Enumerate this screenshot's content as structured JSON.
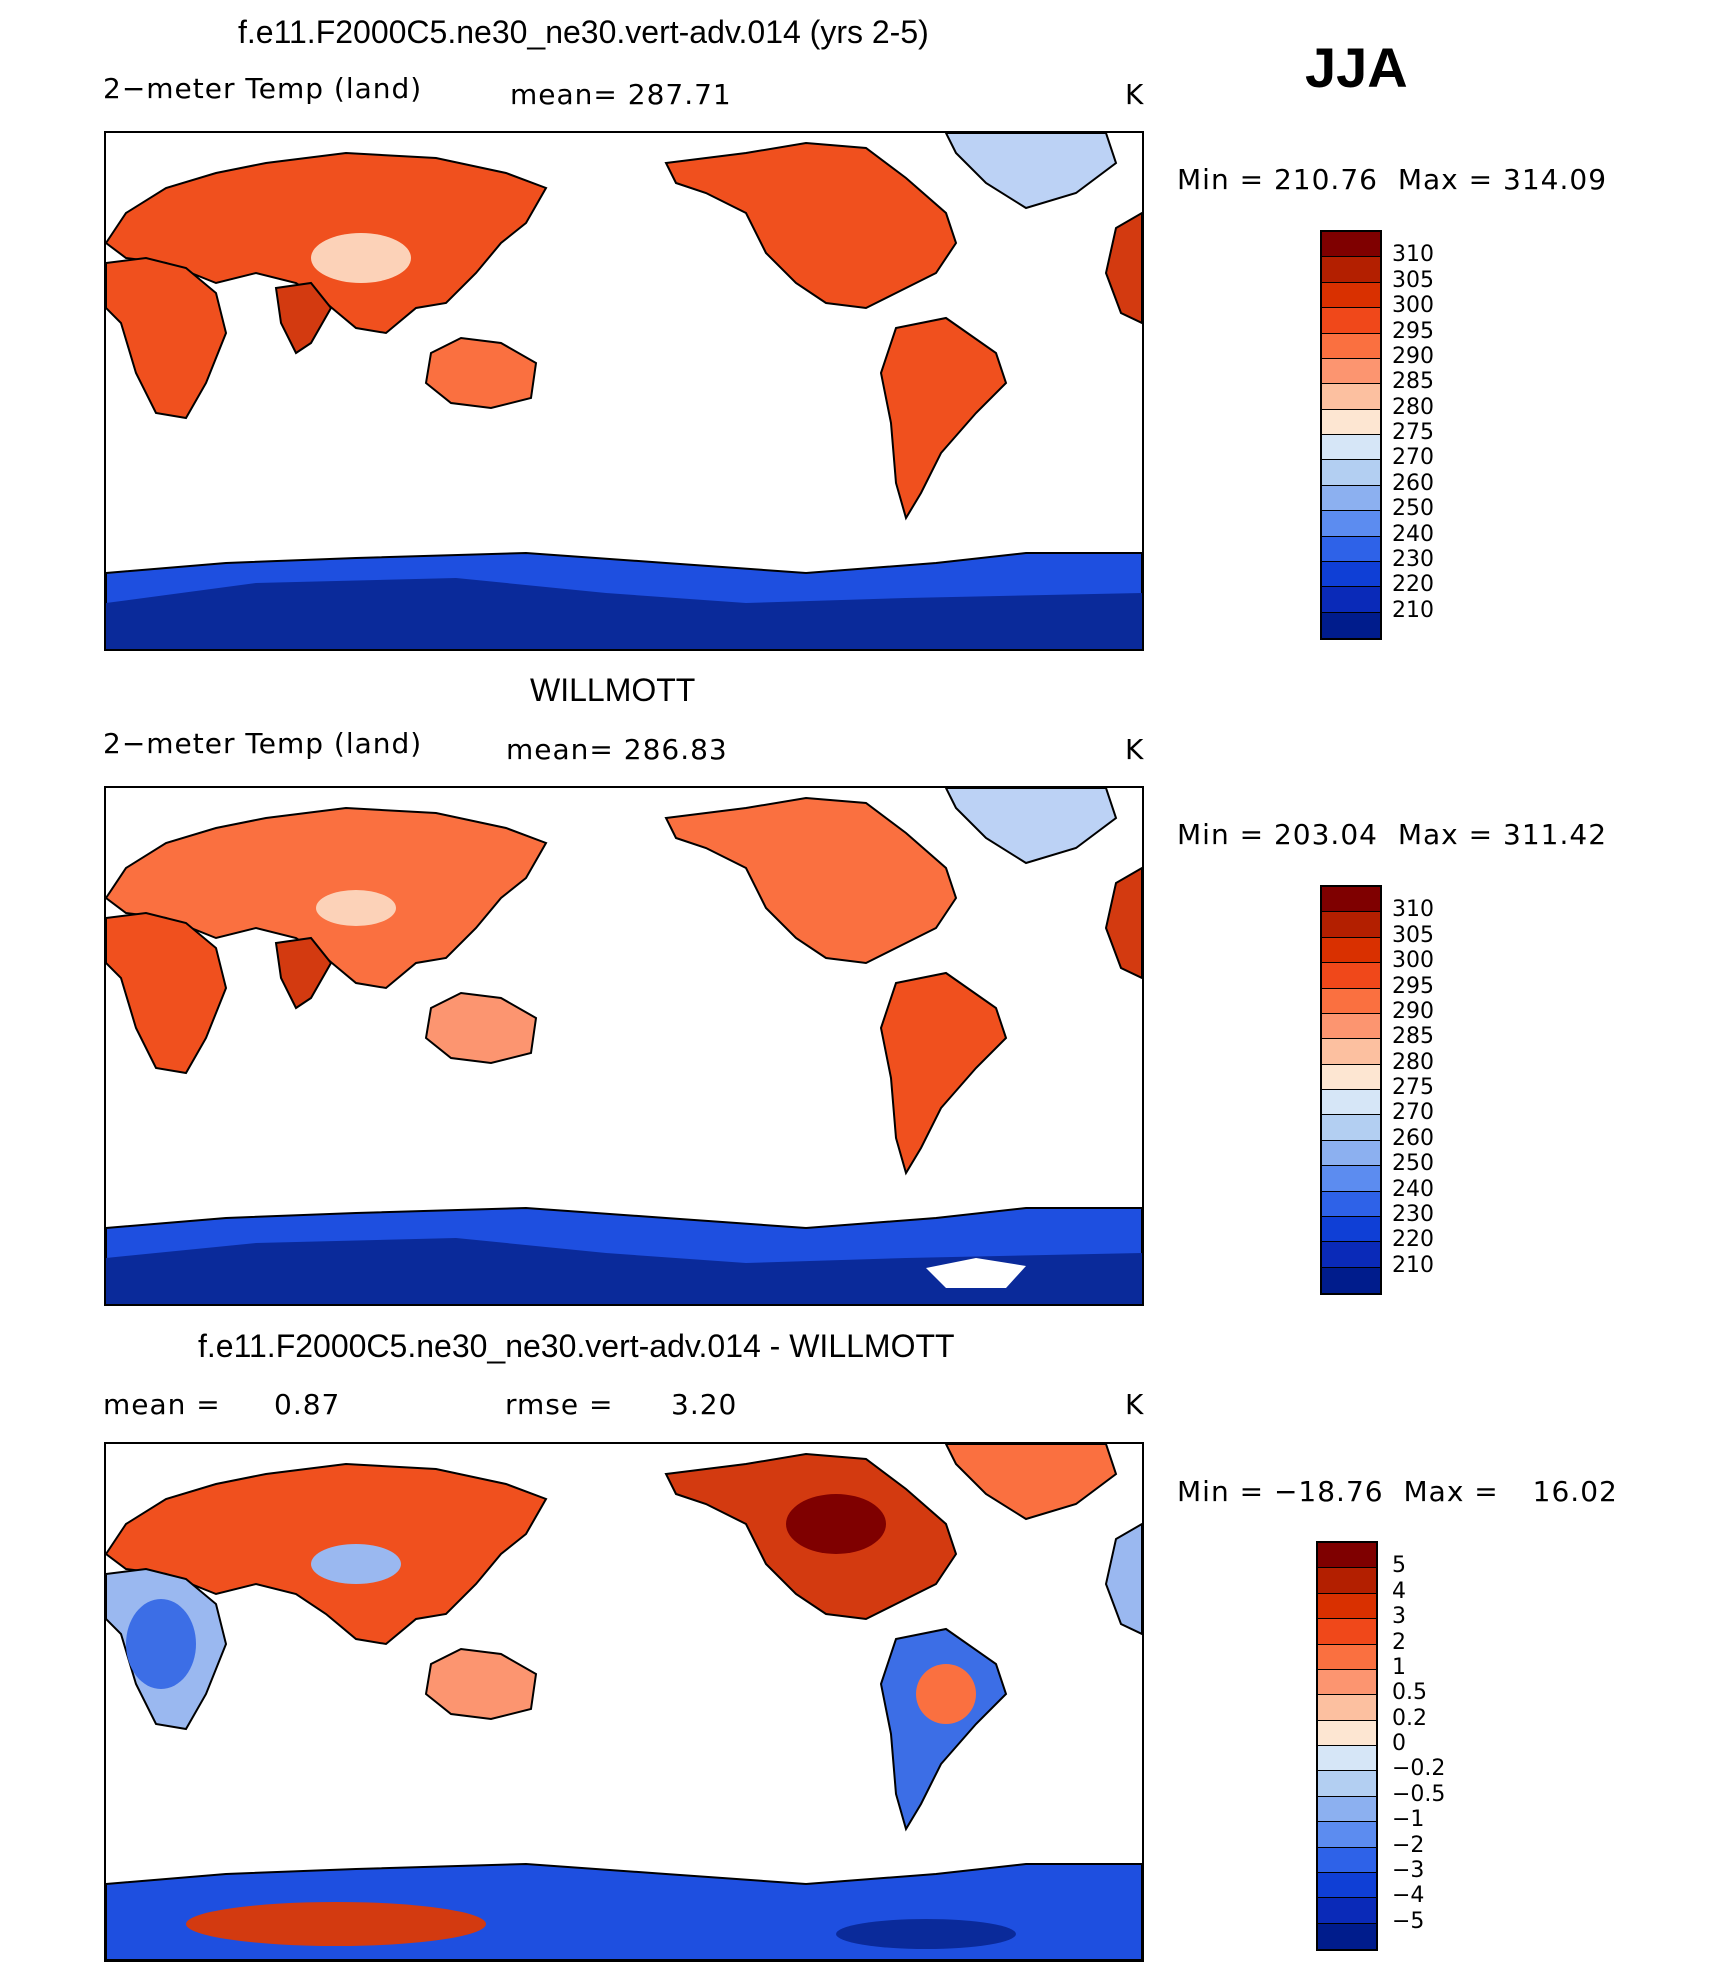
{
  "season": "JJA",
  "panels": [
    {
      "title": "f.e11.F2000C5.ne30_ne30.vert-adv.014 (yrs 2-5)",
      "left_label": "2−meter Temp (land)",
      "center_label": "mean= 287.71",
      "units": "K",
      "min_label": "Min",
      "min_value": "210.76",
      "max_label": "Max",
      "max_value": "314.09",
      "levels": [
        "310",
        "305",
        "300",
        "295",
        "290",
        "285",
        "280",
        "275",
        "270",
        "260",
        "250",
        "240",
        "230",
        "220",
        "210"
      ]
    },
    {
      "title": "WILLMOTT",
      "left_label": "2−meter Temp (land)",
      "center_label": "mean= 286.83",
      "units": "K",
      "min_label": "Min",
      "min_value": "203.04",
      "max_label": "Max",
      "max_value": "311.42",
      "levels": [
        "310",
        "305",
        "300",
        "295",
        "290",
        "285",
        "280",
        "275",
        "270",
        "260",
        "250",
        "240",
        "230",
        "220",
        "210"
      ]
    },
    {
      "title": "f.e11.F2000C5.ne30_ne30.vert-adv.014 - WILLMOTT",
      "left_label": "mean =",
      "left_value": "0.87",
      "center_label": "rmse =",
      "center_value": "3.20",
      "units": "K",
      "min_label": "Min",
      "min_value": "−18.76",
      "max_label": "Max",
      "max_value": "16.02",
      "levels": [
        "5",
        "4",
        "3",
        "2",
        "1",
        "0.5",
        "0.2",
        "0",
        "−0.2",
        "−0.5",
        "−1",
        "−2",
        "−3",
        "−4",
        "−5"
      ]
    }
  ],
  "colors": {
    "scale": [
      "#7f0000",
      "#b31f00",
      "#d93000",
      "#f0481a",
      "#fa7040",
      "#fc9570",
      "#fcc0a0",
      "#fde6d2",
      "#d6e6f7",
      "#b3cff2",
      "#8cb0f0",
      "#5c8cf0",
      "#2e62e8",
      "#0f3fd6",
      "#0a2ab8",
      "#001c8c"
    ],
    "land_warm": "#f0501e",
    "land_hot": "#d33a10",
    "land_mild": "#f7a07a",
    "land_cool": "#fcd2b8",
    "ice_deep": "#0a2a9a",
    "ice": "#1e4fe0",
    "ice_light": "#bcd2f5",
    "diff_cold": "#3c6ee6",
    "diff_coldlight": "#9ab8f0"
  }
}
